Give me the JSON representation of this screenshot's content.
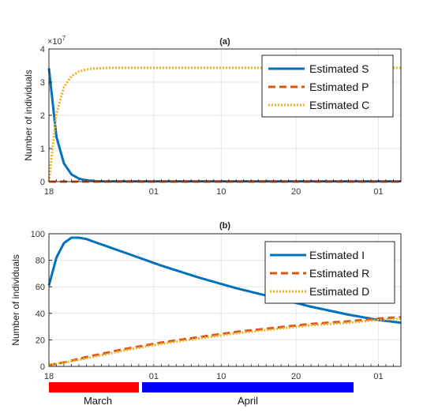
{
  "colors": {
    "blue": "#0072BD",
    "orange": "#D95319",
    "yellow": "#EDB120",
    "march_bar": "#ff0000",
    "april_bar": "#0000ff"
  },
  "chart_data": [
    {
      "type": "line",
      "title": "(a)",
      "ylabel": "Number of individuals",
      "exponent_label": "×10",
      "exponent_power": "7",
      "xlim": [
        0,
        47
      ],
      "ylim": [
        0,
        4
      ],
      "yticks": [
        0,
        1,
        2,
        3,
        4
      ],
      "xtick_days": [
        0,
        14,
        23,
        33,
        44
      ],
      "xtick_labels": [
        "18",
        "01",
        "10",
        "20",
        "01"
      ],
      "grid": true,
      "legend_position": "top-right",
      "series": [
        {
          "name": "Estimated S",
          "color": "#0072BD",
          "dash": "solid",
          "x": [
            0,
            1,
            2,
            3,
            4,
            5,
            6,
            7,
            8,
            10,
            15,
            20,
            30,
            40,
            47
          ],
          "y": [
            3.42,
            1.35,
            0.55,
            0.22,
            0.09,
            0.04,
            0.02,
            0.01,
            0.01,
            0.01,
            0.01,
            0.01,
            0.01,
            0.01,
            0.01
          ]
        },
        {
          "name": "Estimated P",
          "color": "#D95319",
          "dash": "dashed",
          "x": [
            0,
            47
          ],
          "y": [
            0.0,
            0.0
          ]
        },
        {
          "name": "Estimated C",
          "color": "#EDB120",
          "dash": "dotted",
          "x": [
            0,
            1,
            2,
            3,
            4,
            5,
            6,
            7,
            8,
            10,
            15,
            20,
            30,
            40,
            47
          ],
          "y": [
            0.0,
            2.05,
            2.85,
            3.18,
            3.32,
            3.38,
            3.41,
            3.42,
            3.43,
            3.43,
            3.43,
            3.43,
            3.43,
            3.43,
            3.43
          ]
        }
      ]
    },
    {
      "type": "line",
      "title": "(b)",
      "ylabel": "Number of individuals",
      "xlim": [
        0,
        47
      ],
      "ylim": [
        0,
        100
      ],
      "yticks": [
        0,
        20,
        40,
        60,
        80,
        100
      ],
      "xtick_days": [
        0,
        14,
        23,
        33,
        44
      ],
      "xtick_labels": [
        "18",
        "01",
        "10",
        "20",
        "01"
      ],
      "grid": true,
      "legend_position": "top-right",
      "series": [
        {
          "name": "Estimated I",
          "color": "#0072BD",
          "dash": "solid",
          "x": [
            0,
            1,
            2,
            3,
            4,
            5,
            6,
            8,
            10,
            15,
            20,
            25,
            30,
            35,
            40,
            44,
            47
          ],
          "y": [
            61,
            82,
            93,
            97,
            97,
            96,
            94,
            90,
            86,
            76,
            67,
            59,
            52,
            45,
            39,
            35,
            33
          ]
        },
        {
          "name": "Estimated R",
          "color": "#D95319",
          "dash": "dashed",
          "x": [
            0,
            2,
            5,
            10,
            15,
            20,
            25,
            30,
            35,
            40,
            44,
            47
          ],
          "y": [
            1,
            3,
            7,
            13,
            18,
            22,
            26,
            29,
            32,
            34,
            36,
            37
          ]
        },
        {
          "name": "Estimated D",
          "color": "#EDB120",
          "dash": "dotted",
          "x": [
            0,
            2,
            5,
            10,
            15,
            20,
            25,
            30,
            35,
            40,
            44,
            47
          ],
          "y": [
            1,
            3,
            6,
            12,
            17,
            21,
            25,
            28,
            31,
            33,
            35,
            36
          ]
        }
      ]
    }
  ],
  "timeline": {
    "march_label": "March",
    "april_label": "April"
  }
}
